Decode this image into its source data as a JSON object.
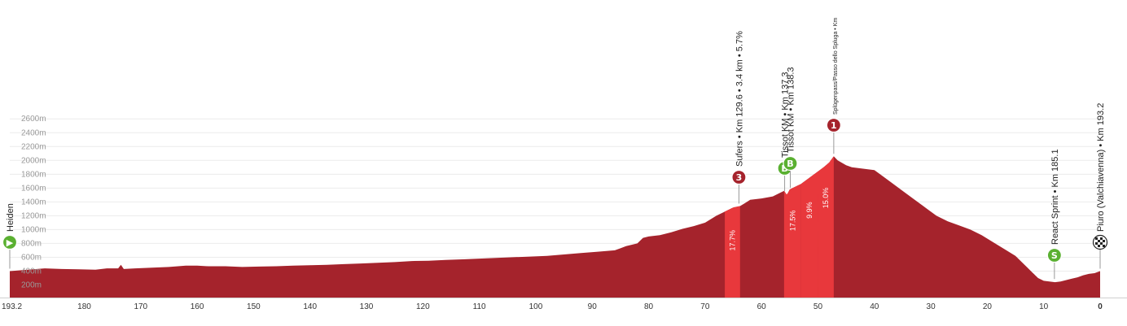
{
  "chart_data": {
    "type": "area",
    "title": "",
    "xlabel": "",
    "ylabel": "",
    "x_reversed": true,
    "xlim": [
      193.2,
      0
    ],
    "ylim": [
      0,
      2700
    ],
    "grid": true,
    "y_ticks": [
      "200m",
      "400m",
      "600m",
      "800m",
      "1000m",
      "1200m",
      "1400m",
      "1600m",
      "1800m",
      "2000m",
      "2200m",
      "2400m",
      "2600m"
    ],
    "y_tick_values": [
      200,
      400,
      600,
      800,
      1000,
      1200,
      1400,
      1600,
      1800,
      2000,
      2200,
      2400,
      2600
    ],
    "x_ticks": [
      "193.2",
      "180",
      "170",
      "160",
      "150",
      "140",
      "130",
      "120",
      "110",
      "100",
      "90",
      "80",
      "70",
      "60",
      "50",
      "40",
      "30",
      "20",
      "10",
      "0"
    ],
    "x_tick_values": [
      193.2,
      180,
      170,
      160,
      150,
      140,
      130,
      120,
      110,
      100,
      90,
      80,
      70,
      60,
      50,
      40,
      30,
      20,
      10,
      0
    ],
    "fill_color": "#a5232c",
    "climb_color": "#e8383c",
    "series": [
      {
        "x": [
          193.2,
          190,
          187,
          184,
          181,
          178,
          176,
          174,
          173.5,
          173,
          171,
          168,
          165,
          162,
          160,
          158,
          155,
          152,
          149,
          146,
          143,
          140,
          137,
          134,
          131,
          128,
          125,
          122,
          119,
          116,
          113,
          110,
          107,
          104,
          101,
          98,
          95,
          92,
          89,
          86,
          84,
          82,
          81,
          80,
          78,
          76,
          74,
          72,
          70,
          68,
          66.5,
          65,
          63.8,
          63,
          62,
          60,
          58,
          57,
          56,
          55.5,
          55,
          54,
          53,
          52,
          51,
          50,
          49,
          48,
          47.2,
          46.5,
          45,
          44,
          42,
          40,
          39,
          37,
          35,
          33,
          31,
          29,
          27,
          25,
          23,
          21,
          19,
          17,
          15,
          13,
          12,
          11,
          10,
          9,
          8,
          7,
          6,
          5,
          4,
          3,
          2,
          1,
          0
        ],
        "y": [
          400,
          420,
          440,
          430,
          425,
          420,
          440,
          440,
          490,
          430,
          440,
          450,
          460,
          480,
          480,
          470,
          470,
          460,
          465,
          470,
          480,
          485,
          490,
          500,
          510,
          520,
          530,
          545,
          550,
          560,
          570,
          580,
          590,
          600,
          610,
          620,
          640,
          660,
          680,
          700,
          760,
          800,
          880,
          900,
          920,
          960,
          1010,
          1050,
          1100,
          1200,
          1260,
          1320,
          1340,
          1380,
          1430,
          1450,
          1480,
          1520,
          1560,
          1500,
          1580,
          1620,
          1660,
          1720,
          1780,
          1840,
          1900,
          1970,
          2060,
          2000,
          1930,
          1900,
          1880,
          1860,
          1800,
          1680,
          1560,
          1440,
          1320,
          1200,
          1120,
          1060,
          1000,
          920,
          820,
          720,
          620,
          460,
          380,
          300,
          260,
          250,
          240,
          250,
          270,
          290,
          310,
          340,
          360,
          370,
          400
        ]
      }
    ],
    "gradients": [
      {
        "from": 66.5,
        "to": 63.8,
        "label": "17.7%"
      },
      {
        "from": 56,
        "to": 53,
        "label": "17.5%"
      },
      {
        "from": 53,
        "to": 50,
        "label": "9.9%"
      },
      {
        "from": 50,
        "to": 47.2,
        "label": "15.0%"
      }
    ],
    "waypoints": [
      {
        "km": 193.2,
        "elev": 400,
        "icon": "start",
        "color": "#5ab031",
        "symbol": "▶",
        "label": "Heiden"
      },
      {
        "km": 64,
        "elev": 1340,
        "icon": "climb-cat-3",
        "color": "#a5232c",
        "symbol": "3",
        "label": "Sufers • Km 129.6 • 3.4 km • 5.7%"
      },
      {
        "km": 55.9,
        "elev": 1520,
        "icon": "bonus-sprint",
        "color": "#5ab031",
        "symbol": "B",
        "label": "Tissot KM • Km 137.3"
      },
      {
        "km": 54.9,
        "elev": 1570,
        "icon": "bonus-sprint",
        "color": "#5ab031",
        "symbol": "B",
        "label": "Tissot KM • Km 138.3"
      },
      {
        "km": 47.2,
        "elev": 2060,
        "icon": "climb-cat-1",
        "color": "#a5232c",
        "symbol": "1",
        "label": "Splügenpass/Passo dello Spluga • Km"
      },
      {
        "km": 8.1,
        "elev": 250,
        "icon": "sprint",
        "color": "#5ab031",
        "symbol": "S",
        "label": "React Sprint • Km 185.1"
      },
      {
        "km": 0,
        "elev": 400,
        "icon": "finish",
        "color": "#ffffff",
        "symbol": "",
        "label": "Piuro (Valchiavenna) • Km 193.2"
      }
    ]
  }
}
